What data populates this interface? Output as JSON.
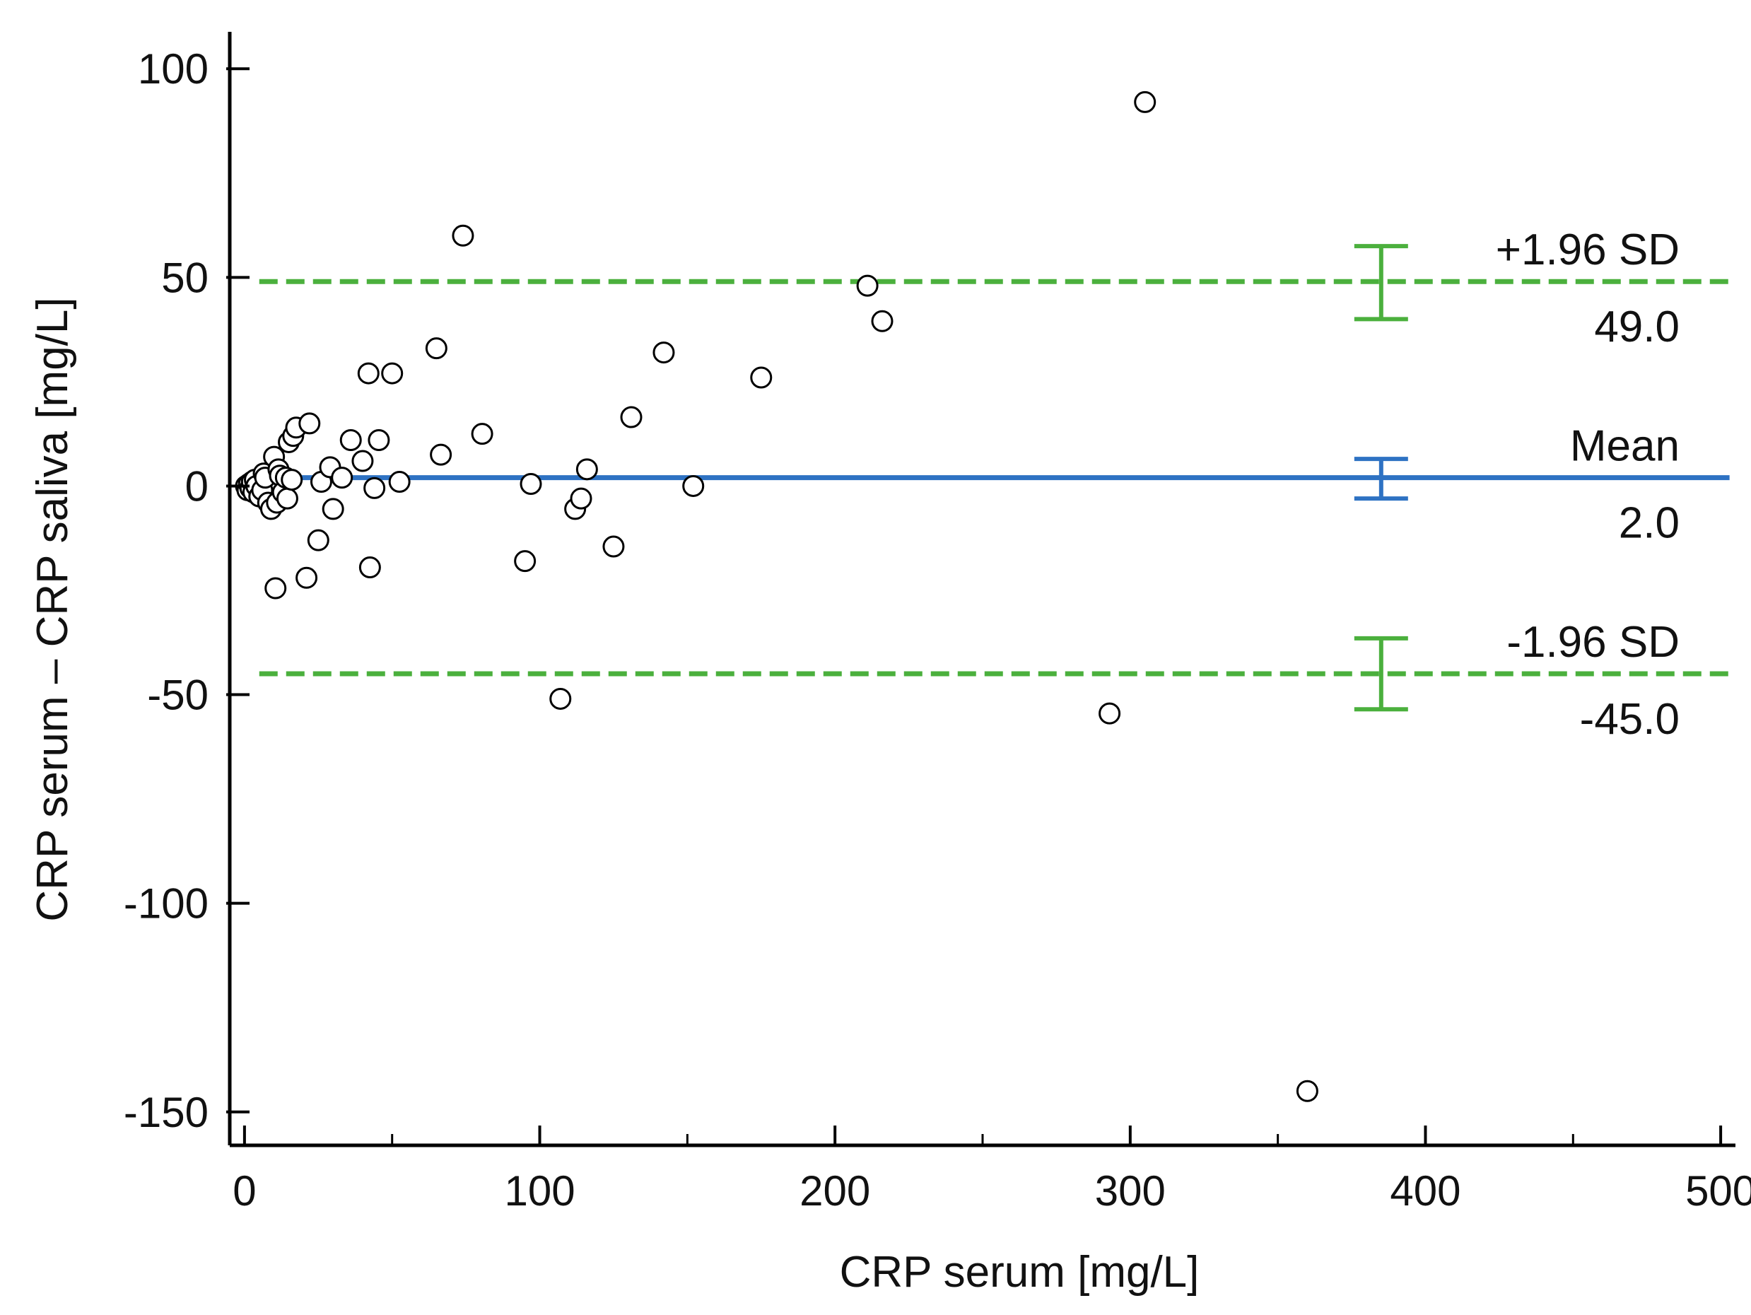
{
  "chart_data": {
    "type": "scatter",
    "title": "",
    "xlabel": "CRP serum [mg/L]",
    "ylabel": "CRP serum – CRP saliva [mg/L]",
    "xlim": [
      -5,
      505
    ],
    "ylim": [
      -158,
      108
    ],
    "x_major_ticks": [
      0,
      100,
      200,
      300,
      400,
      500
    ],
    "x_minor_ticks": [
      50,
      150,
      250,
      350,
      450
    ],
    "y_ticks": [
      100,
      50,
      0,
      -50,
      -100,
      -150
    ],
    "x_tick_labels": [
      "0",
      "100",
      "200",
      "300",
      "400",
      "500"
    ],
    "y_tick_labels": [
      "100",
      "50",
      "0",
      "-50",
      "-100",
      "-150"
    ],
    "colors": {
      "mean": "#2e72c3",
      "limits": "#4bb03d",
      "points": "#000000",
      "axes": "#000000"
    },
    "reference_lines": {
      "x_start": 5,
      "x_end": 503,
      "error_bar_x": 385,
      "upper": {
        "label": "+1.96 SD",
        "value_label": "49.0",
        "value": 49.0,
        "ci_high": 57.5,
        "ci_low": 40.0,
        "style": "dashed"
      },
      "mean": {
        "label": "Mean",
        "value_label": "2.0",
        "value": 2.0,
        "ci_high": 6.5,
        "ci_low": -3.0,
        "style": "solid"
      },
      "lower": {
        "label": "-1.96 SD",
        "value_label": "-45.0",
        "value": -45.0,
        "ci_high": -36.5,
        "ci_low": -53.5,
        "style": "dashed"
      }
    },
    "points": [
      {
        "x": 0.5,
        "y": 0
      },
      {
        "x": 1,
        "y": -1
      },
      {
        "x": 1.5,
        "y": 0.5
      },
      {
        "x": 2,
        "y": -0.5
      },
      {
        "x": 2.5,
        "y": 1
      },
      {
        "x": 3,
        "y": -1.5
      },
      {
        "x": 3.5,
        "y": 1.5
      },
      {
        "x": 4,
        "y": 0
      },
      {
        "x": 5,
        "y": -2.5
      },
      {
        "x": 6,
        "y": -1
      },
      {
        "x": 6.5,
        "y": 3
      },
      {
        "x": 7,
        "y": 2
      },
      {
        "x": 8,
        "y": -4
      },
      {
        "x": 9,
        "y": -5.5
      },
      {
        "x": 10,
        "y": 7
      },
      {
        "x": 10.5,
        "y": -24.5
      },
      {
        "x": 11,
        "y": -4
      },
      {
        "x": 11.5,
        "y": 4
      },
      {
        "x": 12,
        "y": 2.5
      },
      {
        "x": 13,
        "y": -1.5
      },
      {
        "x": 14,
        "y": 2
      },
      {
        "x": 14.5,
        "y": -3
      },
      {
        "x": 15,
        "y": 10.5
      },
      {
        "x": 16,
        "y": 1.5
      },
      {
        "x": 16.5,
        "y": 12
      },
      {
        "x": 17.5,
        "y": 14
      },
      {
        "x": 21,
        "y": -22
      },
      {
        "x": 22,
        "y": 15
      },
      {
        "x": 25,
        "y": -13
      },
      {
        "x": 26,
        "y": 1
      },
      {
        "x": 29,
        "y": 4.5
      },
      {
        "x": 30,
        "y": -5.5
      },
      {
        "x": 33,
        "y": 2
      },
      {
        "x": 36,
        "y": 11
      },
      {
        "x": 40,
        "y": 6
      },
      {
        "x": 42,
        "y": 27
      },
      {
        "x": 42.5,
        "y": -19.5
      },
      {
        "x": 44,
        "y": -0.5
      },
      {
        "x": 45.5,
        "y": 11
      },
      {
        "x": 50,
        "y": 27
      },
      {
        "x": 52.5,
        "y": 1
      },
      {
        "x": 65,
        "y": 33
      },
      {
        "x": 66.5,
        "y": 7.5
      },
      {
        "x": 74,
        "y": 60
      },
      {
        "x": 80.5,
        "y": 12.5
      },
      {
        "x": 95,
        "y": -18
      },
      {
        "x": 97,
        "y": 0.5
      },
      {
        "x": 107,
        "y": -51
      },
      {
        "x": 112,
        "y": -5.5
      },
      {
        "x": 114,
        "y": -3
      },
      {
        "x": 116,
        "y": 4
      },
      {
        "x": 125,
        "y": -14.5
      },
      {
        "x": 131,
        "y": 16.5
      },
      {
        "x": 142,
        "y": 32
      },
      {
        "x": 152,
        "y": 0
      },
      {
        "x": 175,
        "y": 26
      },
      {
        "x": 211,
        "y": 48
      },
      {
        "x": 216,
        "y": 39.5
      },
      {
        "x": 293,
        "y": -54.5
      },
      {
        "x": 305,
        "y": 92
      },
      {
        "x": 360,
        "y": -145
      }
    ]
  }
}
